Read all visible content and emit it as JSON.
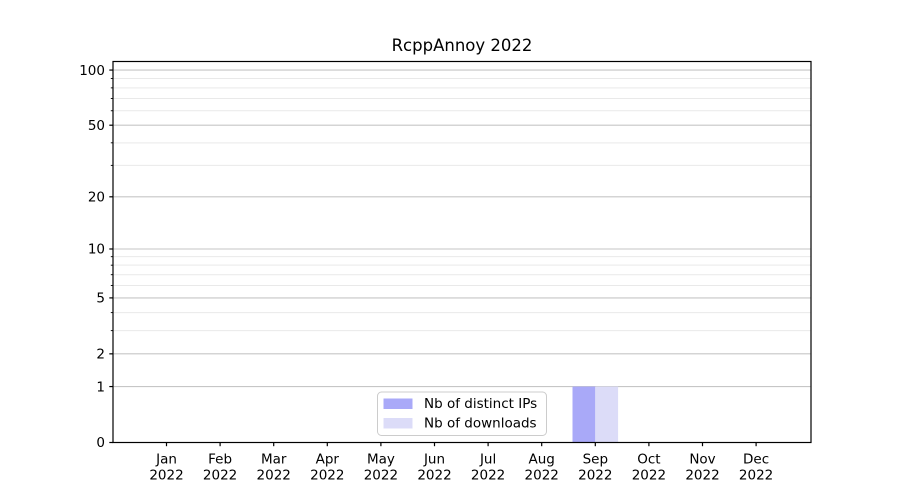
{
  "chart_data": {
    "type": "bar",
    "title": "RcppAnnoy 2022",
    "categories": [
      "Jan",
      "Feb",
      "Mar",
      "Apr",
      "May",
      "Jun",
      "Jul",
      "Aug",
      "Sep",
      "Oct",
      "Nov",
      "Dec"
    ],
    "category_sublabel": "2022",
    "series": [
      {
        "name": "Nb of distinct IPs",
        "color": "#a9a9f8",
        "values": [
          0,
          0,
          0,
          0,
          0,
          0,
          0,
          0,
          1,
          0,
          0,
          0
        ]
      },
      {
        "name": "Nb of downloads",
        "color": "#dcdcf8",
        "values": [
          0,
          0,
          0,
          0,
          0,
          0,
          0,
          0,
          1,
          0,
          0,
          0
        ]
      }
    ],
    "yscale": "log1p",
    "ylim": [
      0,
      111
    ],
    "yticks": [
      0,
      1,
      2,
      5,
      10,
      20,
      50,
      100
    ],
    "yminor": [
      3,
      4,
      6,
      7,
      8,
      9,
      30,
      40,
      60,
      70,
      80,
      90
    ],
    "xlabel": "",
    "ylabel": "",
    "grid": true,
    "legend_position": "lower center",
    "colors": {
      "axis": "#000000",
      "grid_major": "#c6c6c6",
      "grid_minor": "#e9e9e9",
      "background": "#ffffff",
      "legend_border": "#cccccc"
    }
  }
}
